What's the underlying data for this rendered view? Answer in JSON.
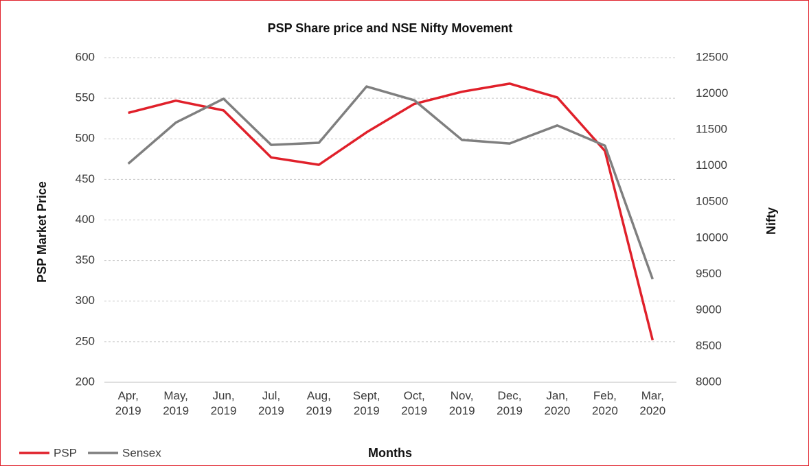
{
  "chart_data": {
    "type": "line",
    "title": "PSP Share price and NSE Nifty Movement",
    "x_label": "Months",
    "y_label": "PSP Market Price",
    "y2_label": "Nifty",
    "categories": [
      "Apr, 2019",
      "May, 2019",
      "Jun, 2019",
      "Jul, 2019",
      "Aug, 2019",
      "Sept, 2019",
      "Oct, 2019",
      "Nov, 2019",
      "Dec, 2019",
      "Jan, 2020",
      "Feb, 2020",
      "Mar, 2020"
    ],
    "series": [
      {
        "name": "PSP",
        "color": "#e0202a",
        "values": [
          532,
          547,
          535,
          477,
          468,
          508,
          543,
          558,
          568,
          551,
          485,
          252
        ]
      },
      {
        "name": "Sensex",
        "color": "#7f7f7f",
        "axis": "y2",
        "values": [
          11030,
          11600,
          11930,
          11290,
          11320,
          12100,
          11910,
          11360,
          11310,
          11560,
          11280,
          9430
        ]
      }
    ],
    "ylim": [
      200,
      600
    ],
    "yticks": [
      200,
      250,
      300,
      350,
      400,
      450,
      500,
      550,
      600
    ],
    "y2lim": [
      8000,
      12500
    ],
    "y2ticks": [
      8000,
      8500,
      9000,
      9500,
      10000,
      10500,
      11000,
      11500,
      12000,
      12500
    ],
    "grid": true,
    "legend": "bottom-left"
  }
}
